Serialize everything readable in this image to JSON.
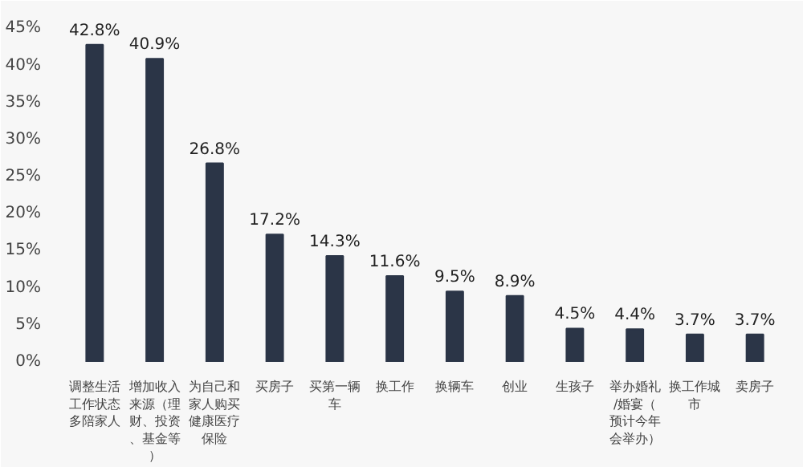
{
  "chart_data": {
    "type": "bar",
    "categories": [
      "调整生活工作状态多陪家人",
      "增加收入来源（理财、投资、基金等）",
      "为自己和家人购买健康医疗保险",
      "买房子",
      "买第一辆车",
      "换工作",
      "换辆车",
      "创业",
      "生孩子",
      "举办婚礼/婚宴（预计今年会举办）",
      "换工作城市",
      "卖房子"
    ],
    "values": [
      42.8,
      40.9,
      26.8,
      17.2,
      14.3,
      11.6,
      9.5,
      8.9,
      4.5,
      4.4,
      3.7,
      3.7
    ],
    "value_labels": [
      "42.8%",
      "40.9%",
      "26.8%",
      "17.2%",
      "14.3%",
      "11.6%",
      "9.5%",
      "8.9%",
      "4.5%",
      "4.4%",
      "3.7%",
      "3.7%"
    ],
    "color": "#2b3547",
    "grid": false,
    "ylim": [
      0,
      47
    ],
    "yticks": [
      {
        "value": 0,
        "label": "0%"
      },
      {
        "value": 5,
        "label": "5%"
      },
      {
        "value": 10,
        "label": "10%"
      },
      {
        "value": 15,
        "label": "15%"
      },
      {
        "value": 20,
        "label": "20%"
      },
      {
        "value": 25,
        "label": "25%"
      },
      {
        "value": 30,
        "label": "30%"
      },
      {
        "value": 35,
        "label": "35%"
      },
      {
        "value": 40,
        "label": "40%"
      },
      {
        "value": 45,
        "label": "45%"
      }
    ]
  }
}
